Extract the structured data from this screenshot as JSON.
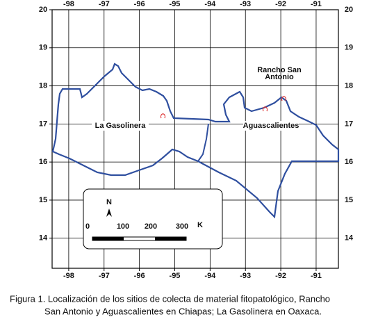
{
  "map": {
    "xlim": [
      -98.47,
      -90.37
    ],
    "ylim": [
      13.21,
      20
    ],
    "xticks": [
      -98,
      -97,
      -96,
      -95,
      -94,
      -93,
      -92,
      -91
    ],
    "yticks": [
      20,
      19,
      18,
      17,
      16,
      15,
      14
    ],
    "places": [
      "La Gasolinera",
      "Aguascalientes"
    ],
    "rancho": [
      "Rancho San",
      "Antonio"
    ],
    "scalebar": {
      "north": "N",
      "labels": [
        "0",
        "100",
        "200",
        "300"
      ],
      "unit": "K"
    }
  },
  "caption": [
    "Figura 1. Localización de los sitios de colecta de material fitopatológico, Rancho",
    "San Antonio y Aguascalientes en Chiapas; La Gasolinera en Oaxaca."
  ]
}
